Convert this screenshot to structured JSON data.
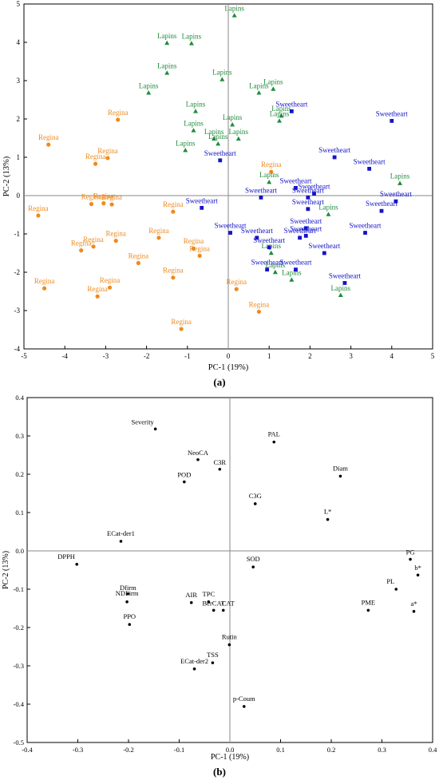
{
  "chart_data": [
    {
      "type": "scatter",
      "panel_label": "(a)",
      "xlabel": "PC-1 (19%)",
      "ylabel": "PC-2 (13%)",
      "xlim": [
        -5,
        5
      ],
      "ylim": [
        -4,
        5
      ],
      "xticks": [
        -5,
        -4,
        -3,
        -2,
        -1,
        0,
        1,
        2,
        3,
        4,
        5
      ],
      "yticks": [
        -4,
        -3,
        -2,
        -1,
        0,
        1,
        2,
        3,
        4,
        5
      ],
      "series": [
        {
          "name": "Regina",
          "marker": "circle",
          "color": "#ee8a1e",
          "points": [
            {
              "x": -4.4,
              "y": 1.33,
              "label": "Regina"
            },
            {
              "x": -2.7,
              "y": 1.98,
              "label": "Regina"
            },
            {
              "x": -2.95,
              "y": 0.98,
              "label": "Regina"
            },
            {
              "x": -3.25,
              "y": 0.83,
              "label": "Regina"
            },
            {
              "x": -3.35,
              "y": -0.22,
              "label": "Regina"
            },
            {
              "x": -3.05,
              "y": -0.2,
              "label": "Regina"
            },
            {
              "x": -2.85,
              "y": -0.23,
              "label": "Regina"
            },
            {
              "x": -4.65,
              "y": -0.52,
              "label": "Regina"
            },
            {
              "x": -1.35,
              "y": -0.42,
              "label": "Regina"
            },
            {
              "x": -3.6,
              "y": -1.43,
              "label": "Regina"
            },
            {
              "x": -3.3,
              "y": -1.33,
              "label": "Regina"
            },
            {
              "x": -2.75,
              "y": -1.18,
              "label": "Regina"
            },
            {
              "x": -1.7,
              "y": -1.1,
              "label": "Regina"
            },
            {
              "x": -0.85,
              "y": -1.38,
              "label": "Regina"
            },
            {
              "x": -0.7,
              "y": -1.57,
              "label": "Regina"
            },
            {
              "x": -2.2,
              "y": -1.76,
              "label": "Regina"
            },
            {
              "x": -4.5,
              "y": -2.42,
              "label": "Regina"
            },
            {
              "x": -2.9,
              "y": -2.4,
              "label": "Regina"
            },
            {
              "x": -3.2,
              "y": -2.63,
              "label": "Regina"
            },
            {
              "x": -1.35,
              "y": -2.14,
              "label": "Regina"
            },
            {
              "x": 0.2,
              "y": -2.44,
              "label": "Regina"
            },
            {
              "x": 0.75,
              "y": -3.03,
              "label": "Regina"
            },
            {
              "x": -1.15,
              "y": -3.48,
              "label": "Regina"
            },
            {
              "x": 1.05,
              "y": 0.62,
              "label": "Regina"
            }
          ]
        },
        {
          "name": "Lapins",
          "marker": "triangle",
          "color": "#1e8c3c",
          "points": [
            {
              "x": 0.15,
              "y": 4.7,
              "label": "Lapins"
            },
            {
              "x": -1.5,
              "y": 3.98,
              "label": "Lapins"
            },
            {
              "x": -0.9,
              "y": 3.97,
              "label": "Lapins"
            },
            {
              "x": -1.5,
              "y": 3.2,
              "label": "Lapins"
            },
            {
              "x": -0.15,
              "y": 3.03,
              "label": "Lapins"
            },
            {
              "x": -1.95,
              "y": 2.68,
              "label": "Lapins"
            },
            {
              "x": 0.75,
              "y": 2.68,
              "label": "Lapins"
            },
            {
              "x": 1.1,
              "y": 2.78,
              "label": "Lapins"
            },
            {
              "x": -0.8,
              "y": 2.2,
              "label": "Lapins"
            },
            {
              "x": 0.1,
              "y": 1.85,
              "label": "Lapins"
            },
            {
              "x": 1.25,
              "y": 1.95,
              "label": "Lapins"
            },
            {
              "x": 1.3,
              "y": 2.08,
              "label": "Lapins"
            },
            {
              "x": -0.85,
              "y": 1.7,
              "label": "Lapins"
            },
            {
              "x": -0.35,
              "y": 1.48,
              "label": "Lapins"
            },
            {
              "x": 0.25,
              "y": 1.48,
              "label": "Lapins"
            },
            {
              "x": -1.05,
              "y": 1.18,
              "label": "Lapins"
            },
            {
              "x": -0.25,
              "y": 1.35,
              "label": "Lapins"
            },
            {
              "x": 1.0,
              "y": 0.35,
              "label": "Lapins"
            },
            {
              "x": 4.2,
              "y": 0.32,
              "label": "Lapins"
            },
            {
              "x": 2.45,
              "y": -0.49,
              "label": "Lapins"
            },
            {
              "x": 1.15,
              "y": -2.0,
              "label": "Lapins"
            },
            {
              "x": 1.55,
              "y": -2.2,
              "label": "Lapins"
            },
            {
              "x": 1.05,
              "y": -1.5,
              "label": "Lapins"
            },
            {
              "x": 2.75,
              "y": -2.6,
              "label": "Lapins"
            }
          ]
        },
        {
          "name": "Sweetheart",
          "marker": "square",
          "color": "#1414c8",
          "points": [
            {
              "x": 1.55,
              "y": 2.2,
              "label": "Sweetheart"
            },
            {
              "x": 4.0,
              "y": 1.95,
              "label": "Sweetheart"
            },
            {
              "x": -0.2,
              "y": 0.92,
              "label": "Sweetheart"
            },
            {
              "x": 2.6,
              "y": 1.0,
              "label": "Sweetheart"
            },
            {
              "x": 3.45,
              "y": 0.7,
              "label": "Sweetheart"
            },
            {
              "x": 1.65,
              "y": 0.2,
              "label": "Sweetheart"
            },
            {
              "x": 2.1,
              "y": 0.05,
              "label": "Sweetheart"
            },
            {
              "x": 0.8,
              "y": -0.05,
              "label": "Sweetheart"
            },
            {
              "x": 1.95,
              "y": -0.05,
              "label": "Sweetheart"
            },
            {
              "x": 4.1,
              "y": -0.15,
              "label": "Sweetheart"
            },
            {
              "x": -0.65,
              "y": -0.32,
              "label": "Sweetheart"
            },
            {
              "x": 1.95,
              "y": -0.35,
              "label": "Sweetheart"
            },
            {
              "x": 3.75,
              "y": -0.4,
              "label": "Sweetheart"
            },
            {
              "x": 1.9,
              "y": -0.85,
              "label": "Sweetheart"
            },
            {
              "x": 0.05,
              "y": -0.97,
              "label": "Sweetheart"
            },
            {
              "x": 3.35,
              "y": -0.97,
              "label": "Sweetheart"
            },
            {
              "x": 0.7,
              "y": -1.1,
              "label": "Sweetheart"
            },
            {
              "x": 1.75,
              "y": -1.1,
              "label": "Sweetheart"
            },
            {
              "x": 1.9,
              "y": -1.05,
              "label": "Sweetheart"
            },
            {
              "x": 1.0,
              "y": -1.35,
              "label": "Sweetheart"
            },
            {
              "x": 2.35,
              "y": -1.5,
              "label": "Sweetheart"
            },
            {
              "x": 0.95,
              "y": -1.93,
              "label": "Sweetheart"
            },
            {
              "x": 1.65,
              "y": -1.93,
              "label": "Sweetheart"
            },
            {
              "x": 2.85,
              "y": -2.28,
              "label": "Sweetheart"
            }
          ]
        }
      ]
    },
    {
      "type": "scatter",
      "panel_label": "(b)",
      "xlabel": "PC-1 (19%)",
      "ylabel": "PC-2 (13%)",
      "xlim": [
        -0.4,
        0.4
      ],
      "ylim": [
        -0.5,
        0.4
      ],
      "xticks": [
        -0.4,
        -0.3,
        -0.2,
        -0.1,
        0.0,
        0.1,
        0.2,
        0.3,
        0.4
      ],
      "yticks": [
        -0.5,
        -0.4,
        -0.3,
        -0.2,
        -0.1,
        0.0,
        0.1,
        0.2,
        0.3,
        0.4
      ],
      "tick_labels_x": [
        "-0.4",
        "-0.3",
        "-0.2",
        "-0.1",
        "0.0",
        "0.1",
        "0.2",
        "0.3",
        "0.4"
      ],
      "tick_labels_y": [
        "-0.5",
        "-0.4",
        "-0.3",
        "-0.2",
        "-0.1",
        "0.0",
        "0.1",
        "0.2",
        "0.3",
        "0.4"
      ],
      "color": "#000000",
      "points": [
        {
          "label": "Severity",
          "x": -0.147,
          "y": 0.318
        },
        {
          "label": "NeoCA",
          "x": -0.063,
          "y": 0.238
        },
        {
          "label": "C3R",
          "x": -0.02,
          "y": 0.213
        },
        {
          "label": "POD",
          "x": -0.09,
          "y": 0.18
        },
        {
          "label": "PAL",
          "x": 0.087,
          "y": 0.284
        },
        {
          "label": "Diam",
          "x": 0.218,
          "y": 0.195
        },
        {
          "label": "C3G",
          "x": 0.05,
          "y": 0.123
        },
        {
          "label": "L*",
          "x": 0.193,
          "y": 0.082
        },
        {
          "label": "ECat-der1",
          "x": -0.215,
          "y": 0.025
        },
        {
          "label": "DPPH",
          "x": -0.302,
          "y": -0.035
        },
        {
          "label": "SOD",
          "x": 0.046,
          "y": -0.042
        },
        {
          "label": "PG",
          "x": 0.356,
          "y": -0.022
        },
        {
          "label": "b*",
          "x": 0.371,
          "y": -0.063
        },
        {
          "label": "PL",
          "x": 0.328,
          "y": -0.1
        },
        {
          "label": "Dfirm",
          "x": -0.201,
          "y": -0.112
        },
        {
          "label": "NDFirm",
          "x": -0.203,
          "y": -0.133
        },
        {
          "label": "AIR",
          "x": -0.076,
          "y": -0.135
        },
        {
          "label": "TPC",
          "x": -0.042,
          "y": -0.133
        },
        {
          "label": "BerCAT",
          "x": -0.032,
          "y": -0.155
        },
        {
          "label": "CAT",
          "x": -0.013,
          "y": -0.155
        },
        {
          "label": "PME",
          "x": 0.273,
          "y": -0.155
        },
        {
          "label": "a*",
          "x": 0.363,
          "y": -0.158
        },
        {
          "label": "PPO",
          "x": -0.198,
          "y": -0.192
        },
        {
          "label": "Rutin",
          "x": -0.001,
          "y": -0.245
        },
        {
          "label": "TSS",
          "x": -0.034,
          "y": -0.292
        },
        {
          "label": "ECat-der2",
          "x": -0.07,
          "y": -0.308
        },
        {
          "label": "p-Coum",
          "x": 0.028,
          "y": -0.406
        }
      ]
    }
  ]
}
